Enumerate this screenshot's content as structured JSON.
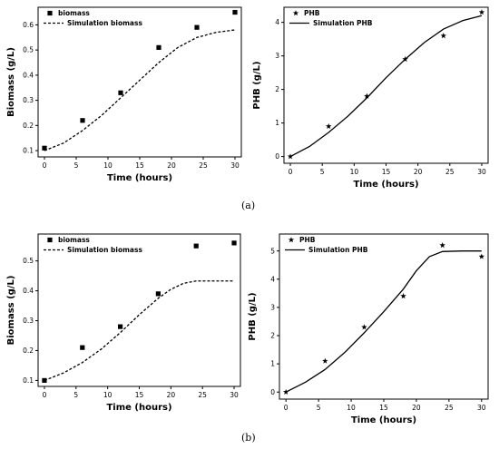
{
  "panel_labels": [
    "(a)",
    "(b)"
  ],
  "chart_data": [
    {
      "type": "scatter",
      "panel": "a-left",
      "xlabel": "Time (hours)",
      "ylabel": "Biomass (g/L)",
      "xlim": [
        -1,
        31
      ],
      "ylim": [
        0.075,
        0.67
      ],
      "xticks": [
        0,
        5,
        10,
        15,
        20,
        25,
        30
      ],
      "yticks": [
        0.1,
        0.2,
        0.3,
        0.4,
        0.5,
        0.6
      ],
      "legend_position": "top-left",
      "marker": "square",
      "series": [
        {
          "name": "biomass",
          "style": "points",
          "x": [
            0,
            6,
            12,
            18,
            24,
            30
          ],
          "y": [
            0.11,
            0.22,
            0.33,
            0.51,
            0.59,
            0.65
          ]
        },
        {
          "name": "Simulation biomass",
          "style": "dashed",
          "x": [
            0,
            3,
            6,
            9,
            12,
            15,
            18,
            21,
            24,
            27,
            30
          ],
          "y": [
            0.1,
            0.13,
            0.18,
            0.24,
            0.31,
            0.38,
            0.45,
            0.51,
            0.55,
            0.57,
            0.58
          ]
        }
      ]
    },
    {
      "type": "scatter",
      "panel": "a-right",
      "xlabel": "Time (hours)",
      "ylabel": "PHB (g/L)",
      "xlim": [
        -1,
        31
      ],
      "ylim": [
        -0.2,
        4.45
      ],
      "xticks": [
        0,
        5,
        10,
        15,
        20,
        25,
        30
      ],
      "yticks": [
        0,
        1,
        2,
        3,
        4
      ],
      "legend_position": "top-left",
      "marker": "star",
      "series": [
        {
          "name": "PHB",
          "style": "points",
          "x": [
            0,
            6,
            12,
            18,
            24,
            30
          ],
          "y": [
            0,
            0.9,
            1.8,
            2.9,
            3.6,
            4.3
          ]
        },
        {
          "name": "Simulation PHB",
          "style": "solid",
          "x": [
            0,
            3,
            6,
            9,
            12,
            15,
            18,
            21,
            24,
            27,
            30
          ],
          "y": [
            0,
            0.3,
            0.72,
            1.2,
            1.75,
            2.35,
            2.9,
            3.4,
            3.8,
            4.05,
            4.2
          ]
        }
      ]
    },
    {
      "type": "scatter",
      "panel": "b-left",
      "xlabel": "Time (hours)",
      "ylabel": "Biomass (g/L)",
      "xlim": [
        -1,
        31
      ],
      "ylim": [
        0.08,
        0.59
      ],
      "xticks": [
        0,
        5,
        10,
        15,
        20,
        25,
        30
      ],
      "yticks": [
        0.1,
        0.2,
        0.3,
        0.4,
        0.5
      ],
      "legend_position": "top-left",
      "marker": "square",
      "series": [
        {
          "name": "biomass",
          "style": "points",
          "x": [
            0,
            6,
            12,
            18,
            24,
            30
          ],
          "y": [
            0.1,
            0.21,
            0.28,
            0.39,
            0.55,
            0.56
          ]
        },
        {
          "name": "Simulation biomass",
          "style": "dashed",
          "x": [
            0,
            3,
            6,
            9,
            12,
            15,
            18,
            20,
            22,
            24,
            27,
            30
          ],
          "y": [
            0.1,
            0.125,
            0.16,
            0.205,
            0.26,
            0.32,
            0.375,
            0.405,
            0.425,
            0.433,
            0.433,
            0.433
          ]
        }
      ]
    },
    {
      "type": "scatter",
      "panel": "b-right",
      "xlabel": "Time (hours)",
      "ylabel": "PHB (g/L)",
      "xlim": [
        -1,
        31
      ],
      "ylim": [
        -0.25,
        5.6
      ],
      "xticks": [
        0,
        5,
        10,
        15,
        20,
        25,
        30
      ],
      "yticks": [
        0,
        1,
        2,
        3,
        4,
        5
      ],
      "legend_position": "top-left",
      "marker": "star",
      "series": [
        {
          "name": "PHB",
          "style": "points",
          "x": [
            0,
            6,
            12,
            18,
            24,
            30
          ],
          "y": [
            0,
            1.1,
            2.3,
            3.4,
            5.2,
            4.8
          ]
        },
        {
          "name": "Simulation PHB",
          "style": "solid",
          "x": [
            0,
            3,
            6,
            9,
            12,
            15,
            18,
            20,
            22,
            24,
            27,
            30
          ],
          "y": [
            0,
            0.35,
            0.8,
            1.4,
            2.1,
            2.85,
            3.65,
            4.3,
            4.8,
            4.98,
            5.0,
            5.0
          ]
        }
      ]
    }
  ]
}
